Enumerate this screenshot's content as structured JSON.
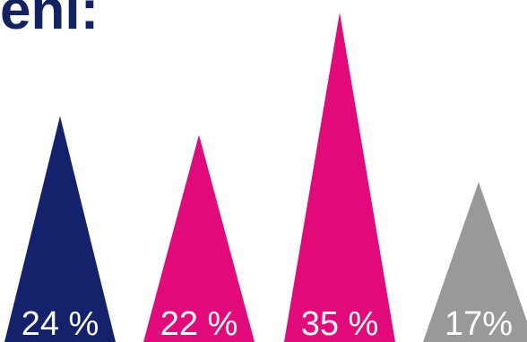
{
  "title": "enl:",
  "chart_data": {
    "type": "bar",
    "shape": "triangle",
    "categories": [
      "",
      "",
      "",
      ""
    ],
    "values": [
      24,
      22,
      35,
      17
    ],
    "labels": [
      "24 %",
      "22 %",
      "35 %",
      "17%"
    ],
    "colors": [
      "#14226b",
      "#e2097b",
      "#e2097b",
      "#999999"
    ],
    "title": "enl:",
    "xlabel": "",
    "ylabel": "",
    "ylim": [
      0,
      35
    ],
    "grid": false,
    "legend": "none"
  }
}
